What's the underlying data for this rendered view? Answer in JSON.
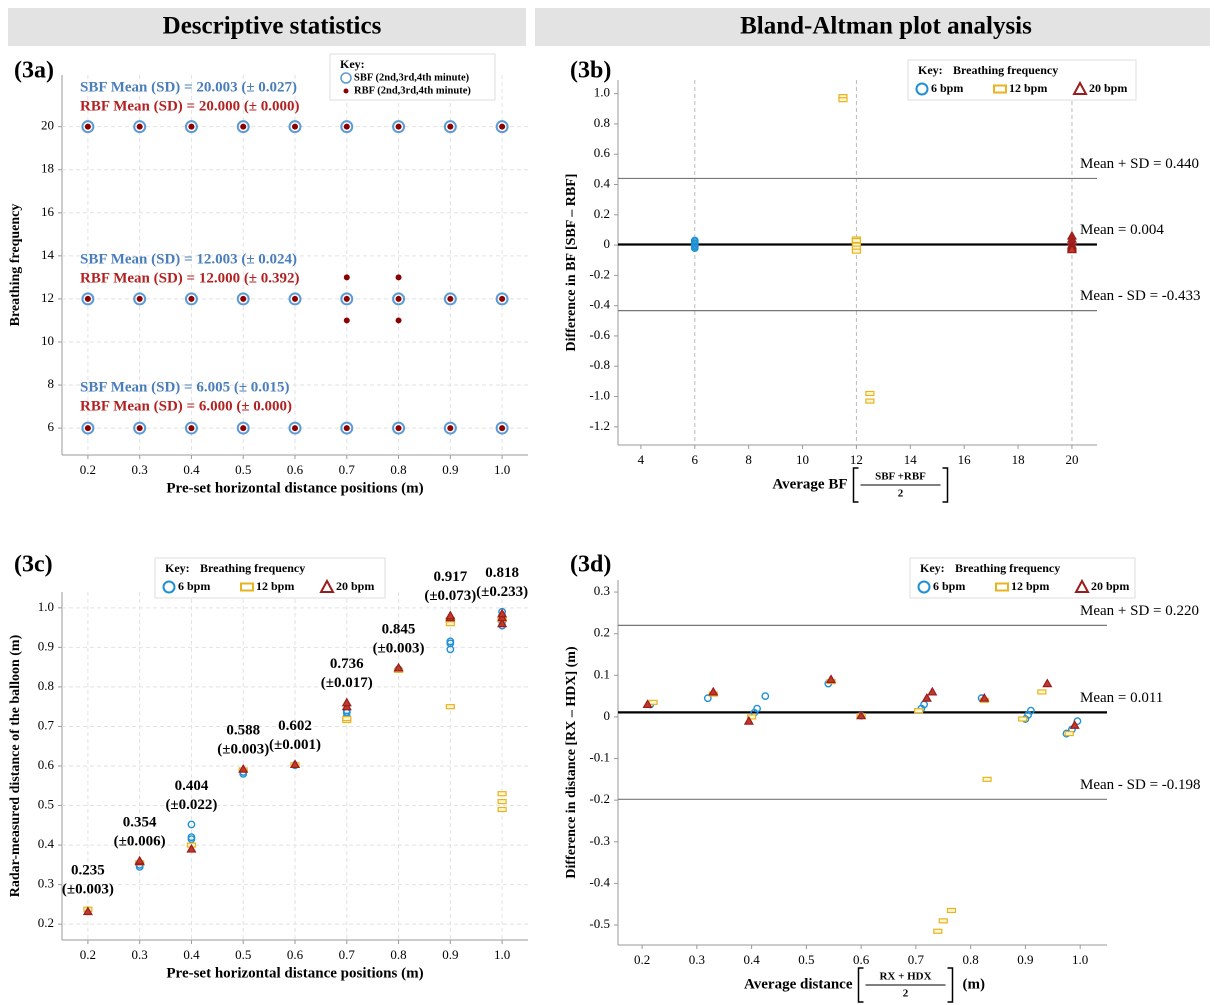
{
  "header": {
    "left": "Descriptive statistics",
    "right": "Bland-Altman plot analysis"
  },
  "chart_data": [
    {
      "type": "scatter",
      "panel_label": "(3a)",
      "x_label": "Pre-set horizontal distance positions (m)",
      "y_label": "Breathing frequency",
      "xlim": [
        0.15,
        1.05
      ],
      "ylim": [
        4.75,
        22.4
      ],
      "xticks": [
        0.2,
        0.3,
        0.4,
        0.5,
        0.6,
        0.7,
        0.8,
        0.9,
        {
          "value": 1,
          "label": "1.0"
        }
      ],
      "yticks": [
        6,
        8,
        10,
        12,
        14,
        16,
        18,
        20
      ],
      "grid": true,
      "legend_title": "Key:",
      "series": [
        {
          "name": "SBF (2nd,3rd,4th minute)",
          "color": "#5b9bd5",
          "marker": "ring",
          "x": [
            0.2,
            0.3,
            0.4,
            0.5,
            0.6,
            0.7,
            0.8,
            0.9,
            1,
            0.2,
            0.3,
            0.4,
            0.5,
            0.6,
            0.7,
            0.8,
            0.9,
            1,
            0.2,
            0.3,
            0.4,
            0.5,
            0.6,
            0.7,
            0.8,
            0.9,
            1
          ],
          "values": [
            6,
            6,
            6,
            6,
            6,
            6,
            6,
            6,
            6,
            12,
            12,
            12,
            12,
            12,
            12,
            12,
            12,
            12,
            20,
            20,
            20,
            20,
            20,
            20,
            20,
            20,
            20
          ]
        },
        {
          "name": "RBF (2nd,3rd,4th minute)",
          "color": "#8b0000",
          "marker": "dot",
          "x": [
            0.2,
            0.3,
            0.4,
            0.5,
            0.6,
            0.7,
            0.8,
            0.9,
            1,
            0.2,
            0.3,
            0.4,
            0.5,
            0.6,
            0.7,
            0.8,
            0.9,
            1,
            0.2,
            0.3,
            0.4,
            0.5,
            0.6,
            0.7,
            0.8,
            0.9,
            1,
            0.7,
            0.7,
            0.8,
            0.8
          ],
          "values": [
            6,
            6,
            6,
            6,
            6,
            6,
            6,
            6,
            6,
            12,
            12,
            12,
            12,
            12,
            12,
            12,
            12,
            12,
            20,
            20,
            20,
            20,
            20,
            20,
            20,
            20,
            20,
            13,
            11,
            13,
            11
          ]
        }
      ],
      "annotations": [
        {
          "text": "SBF Mean (SD) = 20.003 (± 0.027)",
          "color": "#4a7ebb"
        },
        {
          "text": "RBF Mean (SD) = 20.000 (± 0.000)",
          "color": "#b22222"
        },
        {
          "text": "SBF Mean (SD) = 12.003 (± 0.024)",
          "color": "#4a7ebb"
        },
        {
          "text": "RBF Mean (SD) = 12.000 (± 0.392)",
          "color": "#b22222"
        },
        {
          "text": "SBF Mean (SD) = 6.005 (± 0.015)",
          "color": "#4a7ebb"
        },
        {
          "text": "RBF Mean (SD) = 6.000 (± 0.000)",
          "color": "#b22222"
        }
      ]
    },
    {
      "type": "scatter",
      "panel_label": "(3b)",
      "x_label": "Average BF",
      "x_label_fraction": {
        "numerator": "SBF +RBF",
        "denominator": "2"
      },
      "y_label": "Difference in BF [SBF – RBF]",
      "xlim": [
        3.15,
        20.93
      ],
      "ylim": [
        -1.32,
        1.09
      ],
      "xticks": [
        4,
        6,
        8,
        10,
        12,
        14,
        16,
        18,
        20
      ],
      "yticks": [
        {
          "value": 1,
          "label": "1.0"
        },
        0.8,
        0.6,
        0.4,
        0.2,
        0,
        -0.2,
        -0.4,
        -0.6,
        -0.8,
        {
          "value": -1,
          "label": "-1.0"
        },
        -1.2
      ],
      "vlines": [
        6,
        12,
        20
      ],
      "hlines": [
        {
          "value": 0.44,
          "label": "Mean + SD = 0.440"
        },
        {
          "value": 0.004,
          "label": "Mean = 0.004"
        },
        {
          "value": -0.433,
          "label": "Mean - SD = -0.433"
        }
      ],
      "legend_title": "Key:",
      "legend_subtitle": "Breathing frequency",
      "series": [
        {
          "name": "6 bpm",
          "color": "#1e90d6",
          "marker": "circle",
          "x": [
            6,
            6,
            6,
            6,
            6,
            6
          ],
          "values": [
            0.03,
            0.02,
            0.01,
            0,
            -0.01,
            -0.02
          ]
        },
        {
          "name": "12 bpm",
          "color": "#e6b422",
          "marker": "rect",
          "x": [
            12,
            12,
            12,
            12,
            12,
            12,
            11.5,
            11.5,
            12.5,
            12.5
          ],
          "values": [
            0.04,
            0.02,
            0,
            -0.02,
            -0.04,
            0.03,
            0.98,
            0.96,
            -0.98,
            -1.03
          ]
        },
        {
          "name": "20 bpm",
          "color": "#9b1c1c",
          "marker": "triangle",
          "x": [
            20,
            20,
            20,
            20,
            20,
            20,
            20
          ],
          "values": [
            0.06,
            0.04,
            0.02,
            0,
            -0.01,
            -0.02,
            -0.03
          ]
        }
      ]
    },
    {
      "type": "scatter",
      "panel_label": "(3c)",
      "x_label": "Pre-set horizontal distance positions (m)",
      "y_label": "Radar-measured distance of the balloon (m)",
      "xlim": [
        0.15,
        1.05
      ],
      "ylim": [
        0.16,
        1.04
      ],
      "xticks": [
        0.2,
        0.3,
        0.4,
        0.5,
        0.6,
        0.7,
        0.8,
        0.9,
        {
          "value": 1,
          "label": "1.0"
        }
      ],
      "yticks": [
        0.2,
        0.3,
        0.4,
        0.5,
        0.6,
        0.7,
        0.8,
        0.9,
        {
          "value": 1,
          "label": "1.0"
        }
      ],
      "grid": true,
      "legend_title": "Key:",
      "legend_subtitle": "Breathing frequency",
      "mean_labels": [
        {
          "text": "0.235",
          "sd": "(±0.003)"
        },
        {
          "text": "0.354",
          "sd": "(±0.006)"
        },
        {
          "text": "0.404",
          "sd": "(±0.022)"
        },
        {
          "text": "0.588",
          "sd": "(±0.003)"
        },
        {
          "text": "0.602",
          "sd": "(±0.001)"
        },
        {
          "text": "0.736",
          "sd": "(±0.017)"
        },
        {
          "text": "0.845",
          "sd": "(±0.003)"
        },
        {
          "text": "0.917",
          "sd": "(±0.073)"
        },
        {
          "text": "0.818",
          "sd": "(±0.233)"
        }
      ],
      "series": [
        {
          "name": "6 bpm",
          "color": "#1e90d6",
          "marker": "circle",
          "x": [
            0.2,
            0.3,
            0.3,
            0.4,
            0.4,
            0.4,
            0.5,
            0.5,
            0.6,
            0.7,
            0.7,
            0.7,
            0.8,
            0.9,
            0.9,
            0.9,
            1,
            1,
            1,
            1
          ],
          "values": [
            0.235,
            0.345,
            0.35,
            0.452,
            0.42,
            0.415,
            0.58,
            0.585,
            0.602,
            0.725,
            0.735,
            0.74,
            0.845,
            0.895,
            0.91,
            0.915,
            0.955,
            0.965,
            0.98,
            0.99
          ]
        },
        {
          "name": "12 bpm",
          "color": "#e6b422",
          "marker": "rect",
          "x": [
            0.2,
            0.3,
            0.4,
            0.5,
            0.6,
            0.7,
            0.7,
            0.8,
            0.9,
            0.9,
            0.9,
            1,
            1,
            1,
            1
          ],
          "values": [
            0.238,
            0.355,
            0.4,
            0.59,
            0.603,
            0.715,
            0.72,
            0.842,
            0.75,
            0.96,
            0.97,
            0.53,
            0.51,
            0.49,
            0.97
          ]
        },
        {
          "name": "20 bpm",
          "color": "#9b1c1c",
          "marker": "triangle",
          "x": [
            0.2,
            0.3,
            0.3,
            0.4,
            0.5,
            0.6,
            0.7,
            0.7,
            0.8,
            0.9,
            0.9,
            1,
            1,
            1
          ],
          "values": [
            0.232,
            0.358,
            0.36,
            0.39,
            0.592,
            0.604,
            0.75,
            0.76,
            0.848,
            0.975,
            0.98,
            0.96,
            0.975,
            0.985
          ]
        }
      ]
    },
    {
      "type": "scatter",
      "panel_label": "(3d)",
      "x_label": "Average distance",
      "x_label_fraction": {
        "numerator": "RX + HDX",
        "denominator": "2"
      },
      "x_label_unit": "(m)",
      "y_label": "Difference in distance [RX – HDX]  (m)",
      "xlim": [
        0.156,
        1.049
      ],
      "ylim": [
        -0.548,
        0.329
      ],
      "xticks": [
        0.2,
        0.3,
        0.4,
        0.5,
        0.6,
        0.7,
        0.8,
        0.9,
        {
          "value": 1,
          "label": "1.0"
        }
      ],
      "yticks": [
        0.3,
        0.2,
        0.1,
        0,
        -0.1,
        -0.2,
        -0.3,
        -0.4,
        -0.5
      ],
      "hlines": [
        {
          "value": 0.22,
          "label": "Mean + SD = 0.220"
        },
        {
          "value": 0.011,
          "label": "Mean = 0.011"
        },
        {
          "value": -0.198,
          "label": "Mean - SD = -0.198"
        }
      ],
      "legend_title": "Key:",
      "legend_subtitle": "Breathing frequency",
      "series": [
        {
          "name": "6 bpm",
          "color": "#1e90d6",
          "marker": "circle",
          "x": [
            0.215,
            0.32,
            0.405,
            0.41,
            0.425,
            0.54,
            0.6,
            0.71,
            0.715,
            0.82,
            0.9,
            0.905,
            0.91,
            0.975,
            0.985,
            0.995
          ],
          "values": [
            0.03,
            0.045,
            0.01,
            0.02,
            0.05,
            0.08,
            0.003,
            0.02,
            0.03,
            0.045,
            -0.005,
            0.005,
            0.015,
            -0.04,
            -0.03,
            -0.01
          ]
        },
        {
          "name": "12 bpm",
          "color": "#e6b422",
          "marker": "rect",
          "x": [
            0.22,
            0.33,
            0.4,
            0.545,
            0.6,
            0.705,
            0.825,
            0.83,
            0.93,
            0.895,
            0.98,
            0.74,
            0.75,
            0.765
          ],
          "values": [
            0.035,
            0.055,
            0,
            0.085,
            0.003,
            0.015,
            0.04,
            -0.15,
            0.06,
            -0.005,
            -0.04,
            -0.515,
            -0.49,
            -0.465
          ]
        },
        {
          "name": "20 bpm",
          "color": "#9b1c1c",
          "marker": "triangle",
          "x": [
            0.21,
            0.33,
            0.395,
            0.545,
            0.6,
            0.72,
            0.73,
            0.825,
            0.94,
            0.99
          ],
          "values": [
            0.03,
            0.06,
            -0.01,
            0.09,
            0.003,
            0.045,
            0.06,
            0.045,
            0.08,
            -0.02
          ]
        }
      ]
    }
  ]
}
